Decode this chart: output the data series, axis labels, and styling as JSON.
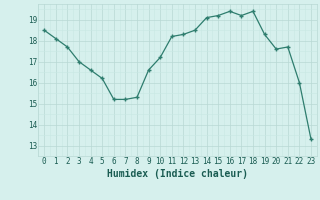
{
  "x": [
    0,
    1,
    2,
    3,
    4,
    5,
    6,
    7,
    8,
    9,
    10,
    11,
    12,
    13,
    14,
    15,
    16,
    17,
    18,
    19,
    20,
    21,
    22,
    23
  ],
  "y": [
    18.5,
    18.1,
    17.7,
    17.0,
    16.6,
    16.2,
    15.2,
    15.2,
    15.3,
    16.6,
    17.2,
    18.2,
    18.3,
    18.5,
    19.1,
    19.2,
    19.4,
    19.2,
    19.4,
    18.3,
    17.6,
    17.7,
    16.0,
    13.3
  ],
  "line_color": "#2e7d6e",
  "marker": "+",
  "marker_size": 3.5,
  "marker_lw": 1.0,
  "line_width": 0.9,
  "bg_color": "#d6f0ed",
  "grid_color_minor": "#c8e8e4",
  "grid_color_major": "#b8d8d4",
  "xlabel": "Humidex (Indice chaleur)",
  "xlabel_color": "#1a5c52",
  "ylabel_ticks": [
    13,
    14,
    15,
    16,
    17,
    18,
    19
  ],
  "xtick_labels": [
    "0",
    "1",
    "2",
    "3",
    "4",
    "5",
    "6",
    "7",
    "8",
    "9",
    "10",
    "11",
    "12",
    "13",
    "14",
    "15",
    "16",
    "17",
    "18",
    "19",
    "20",
    "21",
    "22",
    "23"
  ],
  "ylim": [
    12.5,
    19.75
  ],
  "xlim": [
    -0.5,
    23.5
  ],
  "tick_color": "#1a5c52",
  "tick_fontsize": 5.5,
  "label_fontsize": 7.0
}
